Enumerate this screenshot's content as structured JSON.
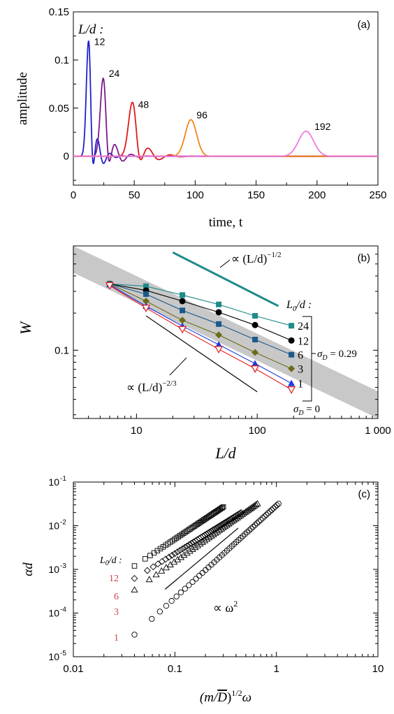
{
  "chart_data": [
    {
      "panel": "(a)",
      "type": "line",
      "title": "",
      "xlabel": "time, t",
      "ylabel": "amplitude",
      "xlim": [
        0,
        250
      ],
      "ylim": [
        -0.03,
        0.15
      ],
      "xticks": [
        0,
        50,
        100,
        150,
        200,
        250
      ],
      "yticks": [
        0,
        0.05,
        0.1,
        0.15
      ],
      "ytick_labels": [
        "0",
        "0.05",
        "0.1",
        "0.15"
      ],
      "legend_title": "L/d :",
      "grid": false,
      "series": [
        {
          "name": "12",
          "color": "#1f1fcf",
          "peak_t": 12.5,
          "peak_amp": 0.12,
          "width": 2.6,
          "ringing": true
        },
        {
          "name": "24",
          "color": "#7a1a8c",
          "peak_t": 24.5,
          "peak_amp": 0.081,
          "width": 3.4,
          "ringing": true
        },
        {
          "name": "48",
          "color": "#e01a1a",
          "peak_t": 48.5,
          "peak_amp": 0.056,
          "width": 4.6,
          "ringing": true
        },
        {
          "name": "96",
          "color": "#f0861a",
          "peak_t": 96.5,
          "peak_amp": 0.038,
          "width": 6.6,
          "ringing": false
        },
        {
          "name": "192",
          "color": "#f07ae0",
          "peak_t": 191,
          "peak_amp": 0.026,
          "width": 8.8,
          "ringing": false
        }
      ]
    },
    {
      "panel": "(b)",
      "type": "line",
      "xlabel": "L/d",
      "ylabel": "W",
      "xscale": "log",
      "yscale": "log",
      "xlim": [
        3,
        1000
      ],
      "ylim": [
        0.028,
        0.7
      ],
      "xticks": [
        10,
        100,
        1000
      ],
      "xtick_labels": [
        "10",
        "100",
        "1 000"
      ],
      "yticks": [
        0.1
      ],
      "ytick_labels": [
        "0.1"
      ],
      "legend_title": "L0/d :",
      "annotations": [
        "∝ (L/d)^{-1/2}",
        "∝ (L/d)^{-2/3}",
        "σ_D = 0.29",
        "σ_D = 0"
      ],
      "band_color": "#c8c8c8",
      "series": [
        {
          "name": "24",
          "color": "#1f8a8a",
          "marker": "square",
          "x": [
            6,
            12,
            24,
            48,
            96,
            192
          ],
          "y": [
            0.345,
            0.33,
            0.28,
            0.235,
            0.19,
            0.158
          ]
        },
        {
          "name": "12",
          "color": "#000000",
          "marker": "circle",
          "x": [
            6,
            12,
            24,
            48,
            96,
            192
          ],
          "y": [
            0.345,
            0.305,
            0.25,
            0.203,
            0.16,
            0.12
          ]
        },
        {
          "name": "6",
          "color": "#1a5a8a",
          "marker": "square",
          "x": [
            6,
            12,
            24,
            48,
            96,
            192
          ],
          "y": [
            0.345,
            0.285,
            0.21,
            0.163,
            0.122,
            0.092
          ]
        },
        {
          "name": "3",
          "color": "#6b6b1a",
          "marker": "diamond",
          "x": [
            6,
            12,
            24,
            48,
            96,
            192
          ],
          "y": [
            0.345,
            0.25,
            0.175,
            0.133,
            0.096,
            0.071
          ]
        },
        {
          "name": "1",
          "color": "#1a3ae0",
          "marker": "triangle-up",
          "x": [
            6,
            12,
            24,
            48,
            96,
            192
          ],
          "y": [
            0.34,
            0.228,
            0.157,
            0.111,
            0.078,
            0.054
          ]
        },
        {
          "name": "σ_D = 0",
          "color": "#e01a1a",
          "marker": "triangle-down-open",
          "x": [
            6,
            12,
            24,
            48,
            96,
            192
          ],
          "y": [
            0.335,
            0.22,
            0.148,
            0.102,
            0.071,
            0.048
          ]
        }
      ],
      "guide_lines": [
        {
          "label": "∝ (L/d)^{-1/2}",
          "color": "#1f8a8a",
          "x": [
            20,
            150
          ],
          "y": [
            0.62,
            0.228
          ]
        },
        {
          "label": "∝ (L/d)^{-2/3}",
          "color": "#000000",
          "x": [
            12,
            100
          ],
          "y": [
            0.19,
            0.046
          ]
        }
      ]
    },
    {
      "panel": "(c)",
      "type": "scatter",
      "xlabel": "(m/D̄)^{1/2} ω",
      "ylabel": "αd",
      "xscale": "log",
      "yscale": "log",
      "xlim": [
        0.01,
        10
      ],
      "ylim": [
        1e-05,
        0.1
      ],
      "xticks": [
        0.01,
        0.1,
        1,
        10
      ],
      "xtick_labels": [
        "0.01",
        "0.1",
        "1",
        "10"
      ],
      "yticks": [
        1e-05,
        0.0001,
        0.001,
        0.01,
        0.1
      ],
      "ytick_labels": [
        "10-5",
        "10-4",
        "10-3",
        "10-2",
        "10-1"
      ],
      "legend_title": "L0/d :",
      "annotations": [
        "∝ ω²"
      ],
      "series": [
        {
          "name": "12",
          "marker": "square",
          "x_range": [
            0.04,
            0.3
          ],
          "y_start": 0.0012,
          "y_end": 0.027
        },
        {
          "name": "6",
          "marker": "diamond",
          "x_range": [
            0.04,
            0.45
          ],
          "y_start": 0.00062,
          "y_end": 0.02
        },
        {
          "name": "3",
          "marker": "triangle-up",
          "x_range": [
            0.04,
            0.65
          ],
          "y_start": 0.00034,
          "y_end": 0.032
        },
        {
          "name": "1",
          "marker": "circle",
          "x_range": [
            0.04,
            1.05
          ],
          "y_start": 3.2e-05,
          "y_end": 0.032
        }
      ],
      "guide_line": {
        "label": "∝ ω²",
        "x": [
          0.08,
          0.42
        ],
        "y": [
          0.00035,
          0.0088
        ]
      }
    }
  ],
  "labels": {
    "a_panel": "(a)",
    "a_legend": "L/d :",
    "a_ylabel": "amplitude",
    "a_xlabel": "time, t",
    "b_panel": "(b)",
    "b_ylabel": "W",
    "b_xlabel": "L/d",
    "b_slope_half": "∝ (L/d)",
    "b_slope_half_exp": "−1/2",
    "b_slope_twothird": "∝ (L/d)",
    "b_slope_twothird_exp": "−2/3",
    "b_legend": "L",
    "b_legend_sub": "0",
    "b_legend_tail": "/d :",
    "b_sigma029": "σ",
    "b_sigma029_sub": "D",
    "b_sigma029_tail": " = 0.29",
    "b_sigma0": "σ",
    "b_sigma0_sub": "D",
    "b_sigma0_tail": " = 0",
    "c_panel": "(c)",
    "c_ylabel": "αd",
    "c_legend": "L",
    "c_legend_sub": "0",
    "c_legend_tail": "/d :",
    "c_slope": "∝ ω",
    "c_slope_exp": "2",
    "c_xlabel_pre": "(m/",
    "c_xlabel_D": "D",
    "c_xlabel_post": ")",
    "c_xlabel_exp": "1/2",
    "c_xlabel_omega": "ω"
  }
}
